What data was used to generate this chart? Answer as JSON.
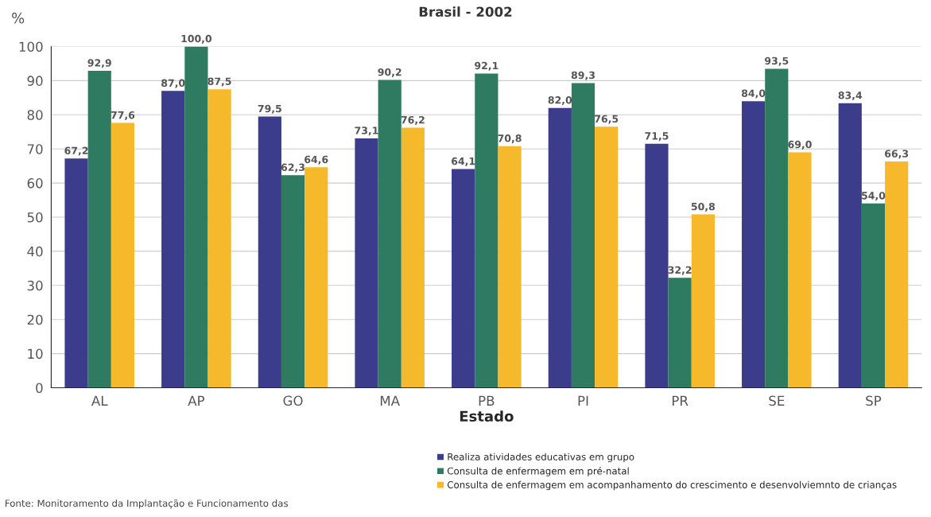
{
  "chart_data": {
    "type": "bar",
    "title": "Brasil - 2002",
    "ylabel": "%",
    "xlabel": "Estado",
    "categories": [
      "AL",
      "AP",
      "GO",
      "MA",
      "PB",
      "PI",
      "PR",
      "SE",
      "SP"
    ],
    "series": [
      {
        "name": "Realiza atividades educativas em grupo",
        "color": "#3b3c8c",
        "values": [
          67.2,
          87.0,
          79.5,
          73.1,
          64.1,
          82.0,
          71.5,
          84.0,
          83.4
        ],
        "value_labels": [
          "67,2",
          "87,0",
          "79,5",
          "73,1",
          "64,1",
          "82,0",
          "71,5",
          "84,0",
          "83,4"
        ]
      },
      {
        "name": "Consulta de enfermagem em pré-natal",
        "color": "#2e7b62",
        "values": [
          92.9,
          100.0,
          62.3,
          90.2,
          92.1,
          89.3,
          32.2,
          93.5,
          54.0
        ],
        "value_labels": [
          "92,9",
          "100,0",
          "62,3",
          "90,2",
          "92,1",
          "89,3",
          "32,2",
          "93,5",
          "54,0"
        ]
      },
      {
        "name": "Consulta de enfermagem em acompanhamento do crescimento e desenvolviemnto de crianças",
        "color": "#f6b92c",
        "values": [
          77.6,
          87.5,
          64.6,
          76.2,
          70.8,
          76.5,
          50.8,
          69.0,
          66.3
        ],
        "value_labels": [
          "77,6",
          "87,5",
          "64,6",
          "76,2",
          "70,8",
          "76,5",
          "50,8",
          "69,0",
          "66,3"
        ]
      }
    ],
    "ylim": [
      0,
      100
    ],
    "yticks": [
      0,
      10,
      20,
      30,
      40,
      50,
      60,
      70,
      80,
      90,
      100
    ],
    "grid": "y",
    "legend": "bottom",
    "annotations": [
      "Fonte: Monitoramento da Implantação e Funcionamento das"
    ]
  }
}
